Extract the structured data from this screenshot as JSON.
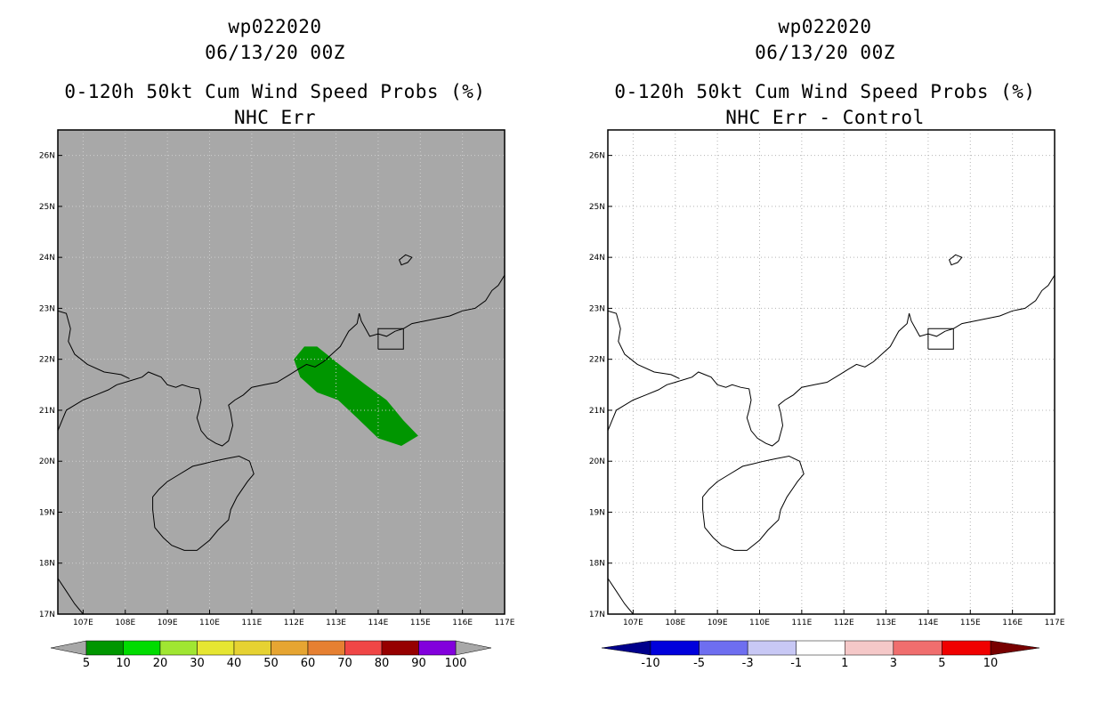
{
  "panels": [
    {
      "id": "left",
      "title_line1": "wp022020",
      "title_line2": "06/13/20 00Z",
      "title_line3": "0-120h 50kt Cum Wind Speed Probs (%)",
      "title_line4": "NHC Err",
      "background": "#a8a8a8",
      "probability_area_color": "#009600",
      "probability_area_value": "5-10",
      "colorbar": {
        "labels": [
          "5",
          "10",
          "20",
          "30",
          "40",
          "50",
          "60",
          "70",
          "80",
          "90",
          "100"
        ],
        "colors": [
          "#009600",
          "#00dc00",
          "#a0e632",
          "#e6e632",
          "#e6d232",
          "#e6a532",
          "#e68032",
          "#f04646",
          "#960000",
          "#8200dc"
        ],
        "end_color": "#a8a8a8"
      }
    },
    {
      "id": "right",
      "title_line1": "wp022020",
      "title_line2": "06/13/20 00Z",
      "title_line3": "0-120h 50kt Cum Wind Speed Probs (%)",
      "title_line4": "NHC Err - Control",
      "background": "#ffffff",
      "colorbar": {
        "labels": [
          "-10",
          "-5",
          "-3",
          "-1",
          "1",
          "3",
          "5",
          "10"
        ],
        "colors": [
          "#0000dc",
          "#6e6ef0",
          "#c8c8f5",
          "#ffffff",
          "#f5c8c8",
          "#f06e6e",
          "#f00000"
        ],
        "left_end_color": "#00008c",
        "right_end_color": "#780000"
      }
    }
  ],
  "axes": {
    "lon_ticks": [
      "107E",
      "108E",
      "109E",
      "110E",
      "111E",
      "112E",
      "113E",
      "114E",
      "115E",
      "116E",
      "117E"
    ],
    "lat_ticks": [
      "17N",
      "18N",
      "19N",
      "20N",
      "21N",
      "22N",
      "23N",
      "24N",
      "25N",
      "26N"
    ],
    "lon_range": [
      106.4,
      117.0
    ],
    "lat_range": [
      17.0,
      26.5
    ]
  }
}
